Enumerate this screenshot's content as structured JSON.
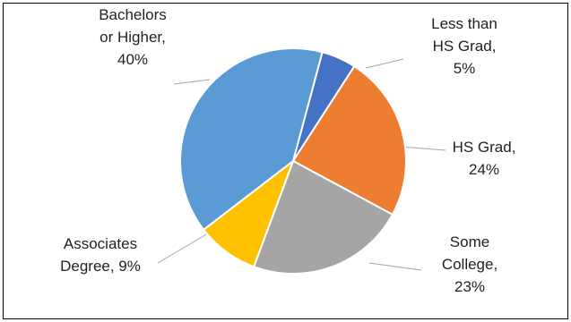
{
  "chart_data": {
    "type": "pie",
    "title": "",
    "slices": [
      {
        "label_lines": [
          "Less than",
          "HS Grad,",
          "5%"
        ],
        "value": 5,
        "color": "#4472C4"
      },
      {
        "label_lines": [
          "HS Grad,",
          "24%"
        ],
        "value": 24,
        "color": "#ED7D31"
      },
      {
        "label_lines": [
          "Some",
          "College,",
          "23%"
        ],
        "value": 23,
        "color": "#A5A5A5"
      },
      {
        "label_lines": [
          "Associates",
          "Degree, 9%"
        ],
        "value": 9,
        "color": "#FFC000"
      },
      {
        "label_lines": [
          "Bachelors",
          "or Higher,",
          "40%"
        ],
        "value": 40,
        "color": "#5B9BD5"
      }
    ]
  }
}
